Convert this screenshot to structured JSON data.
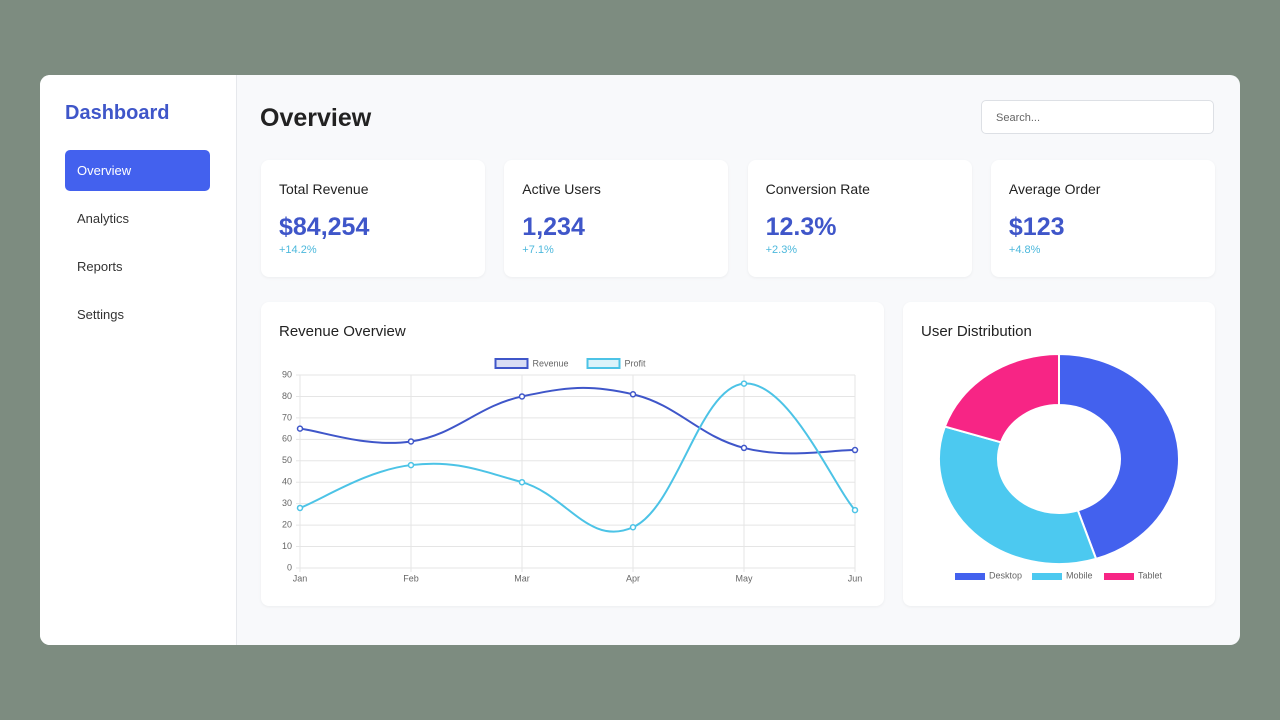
{
  "sidebar": {
    "title": "Dashboard",
    "nav": [
      "Overview",
      "Analytics",
      "Reports",
      "Settings"
    ]
  },
  "header": {
    "title": "Overview",
    "search_placeholder": "Search..."
  },
  "stats": [
    {
      "label": "Total Revenue",
      "value": "$84,254",
      "change": "+14.2%"
    },
    {
      "label": "Active Users",
      "value": "1,234",
      "change": "+7.1%"
    },
    {
      "label": "Conversion Rate",
      "value": "12.3%",
      "change": "+2.3%"
    },
    {
      "label": "Average Order",
      "value": "$123",
      "change": "+4.8%"
    }
  ],
  "chart_data": [
    {
      "type": "line",
      "title": "Revenue Overview",
      "categories": [
        "Jan",
        "Feb",
        "Mar",
        "Apr",
        "May",
        "Jun"
      ],
      "series": [
        {
          "name": "Revenue",
          "color": "#3f56c9",
          "values": [
            65,
            59,
            80,
            81,
            56,
            55
          ]
        },
        {
          "name": "Profit",
          "color": "#4cc3e6",
          "values": [
            28,
            48,
            40,
            19,
            86,
            27
          ]
        }
      ],
      "ylim": [
        0,
        90
      ],
      "yticks": [
        0,
        10,
        20,
        30,
        40,
        50,
        60,
        70,
        80,
        90
      ],
      "grid": true,
      "legend": "top"
    },
    {
      "type": "doughnut",
      "title": "User Distribution",
      "categories": [
        "Desktop",
        "Mobile",
        "Tablet"
      ],
      "values": [
        45,
        35,
        20
      ],
      "colors": [
        "#4361ee",
        "#4cc9f0",
        "#f72585"
      ],
      "legend": "bottom"
    }
  ]
}
